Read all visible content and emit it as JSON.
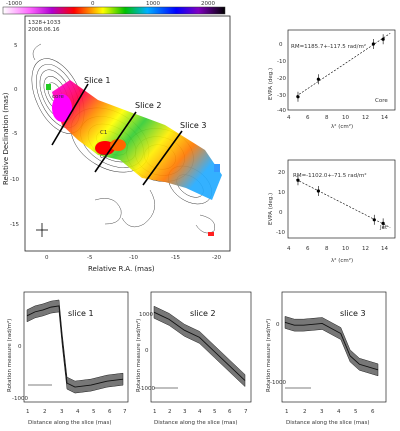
{
  "colorbar": {
    "ticks": [
      "-1000",
      "0",
      "1000",
      "2000"
    ]
  },
  "map": {
    "source": "1328+1033",
    "date": "2008.06.16",
    "xlabel": "Relative R.A. (mas)",
    "ylabel": "Relative Declination (mas)",
    "xticks": [
      "0",
      "-5",
      "-10",
      "-15",
      "-20"
    ],
    "yticks": [
      "5",
      "0",
      "-5",
      "-10",
      "-15"
    ],
    "labels": {
      "core": "core",
      "s1": "Slice 1",
      "s2": "Slice 2",
      "s3": "Slice 3",
      "c1": "C1",
      "c2": "C2"
    }
  },
  "fit_core": {
    "text": "RM=1185.7+-117.5 rad/m²",
    "region": "Core",
    "xlabel": "λ² (cm²)",
    "ylabel": "EVPA (deg.)",
    "xticks": [
      "4",
      "6",
      "8",
      "10",
      "12",
      "14"
    ],
    "yticks": [
      "0",
      "-10",
      "-20",
      "-30",
      "-40"
    ]
  },
  "fit_jet": {
    "text": "RM=-1102.0+-71.5 rad/m²",
    "region": "Jet",
    "xlabel": "λ² (cm²)",
    "ylabel": "EVPA (deg.)",
    "xticks": [
      "4",
      "6",
      "8",
      "10",
      "12",
      "14"
    ],
    "yticks": [
      "-10",
      "0",
      "10",
      "20"
    ]
  },
  "chart_data": [
    {
      "type": "scatter",
      "title": "",
      "region": "Core",
      "xlabel": "λ² (cm²)",
      "ylabel": "EVPA (deg.)",
      "x": [
        3.9,
        6.2,
        12.4,
        13.5
      ],
      "y": [
        -33,
        -22,
        0,
        3
      ],
      "xlim": [
        3,
        14.5
      ],
      "ylim": [
        -40,
        5
      ]
    },
    {
      "type": "scatter",
      "title": "",
      "region": "Jet",
      "xlabel": "λ² (cm²)",
      "ylabel": "EVPA (deg.)",
      "x": [
        3.9,
        6.2,
        12.5,
        13.5
      ],
      "y": [
        16,
        10,
        -6,
        -8
      ],
      "xlim": [
        3,
        14.5
      ],
      "ylim": [
        -15,
        25
      ]
    },
    {
      "type": "line",
      "title": "slice 1",
      "xlabel": "Distance along the slice (mas)",
      "ylabel": "Rotation measure (rad/m²)",
      "x": [
        1,
        1.5,
        2,
        2.5,
        3,
        3.2,
        3.5,
        4,
        5,
        6,
        7
      ],
      "y": [
        400,
        500,
        550,
        620,
        650,
        -200,
        -1300,
        -1400,
        -1350,
        -1250,
        -1200
      ],
      "xticks": [
        "1",
        "2",
        "3",
        "4",
        "5",
        "6",
        "7"
      ],
      "yticks": [
        "0",
        "-1000"
      ]
    },
    {
      "type": "line",
      "title": "slice 2",
      "xlabel": "Distance along the slice (mas)",
      "ylabel": "Rotation measure (rad/m²)",
      "x": [
        1,
        1.5,
        2,
        3,
        4,
        5,
        6,
        7
      ],
      "y": [
        1200,
        1100,
        1000,
        700,
        500,
        100,
        -300,
        -700
      ],
      "xticks": [
        "1",
        "2",
        "3",
        "4",
        "5",
        "6",
        "7"
      ],
      "yticks": [
        "1000",
        "0",
        "-1000"
      ]
    },
    {
      "type": "line",
      "title": "slice 3",
      "xlabel": "Distance along the slice (mas)",
      "ylabel": "Rotation measure (rad/m²)",
      "x": [
        1,
        1.5,
        2,
        3,
        4,
        4.5,
        5,
        6
      ],
      "y": [
        -200,
        -250,
        -250,
        -220,
        -400,
        -800,
        -950,
        -1050
      ],
      "xticks": [
        "1",
        "2",
        "3",
        "4",
        "5",
        "6"
      ],
      "yticks": [
        "0",
        "-1000"
      ]
    }
  ]
}
